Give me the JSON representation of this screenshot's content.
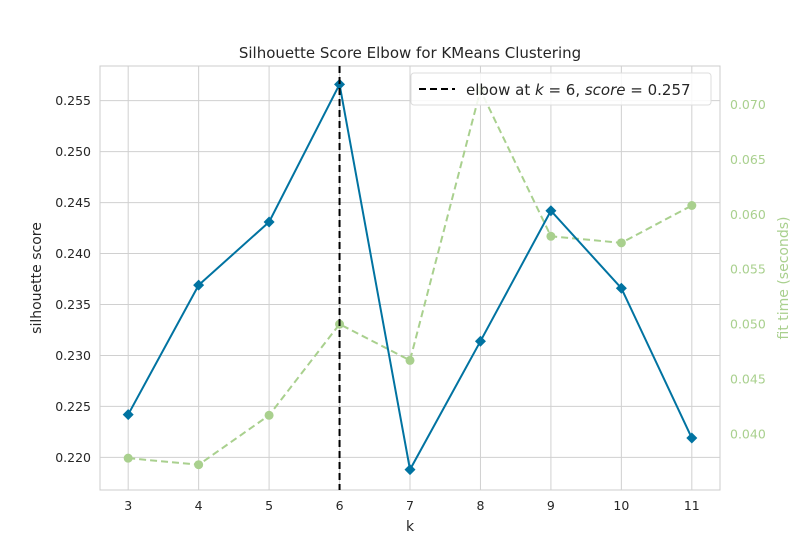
{
  "chart_data": {
    "type": "line",
    "title": "Silhouette Score Elbow for KMeans Clustering",
    "xlabel": "k",
    "ylabel": "silhouette score",
    "y2label": "fit time (seconds)",
    "x": [
      3,
      4,
      5,
      6,
      7,
      8,
      9,
      10,
      11
    ],
    "xlim": [
      2.6,
      11.4
    ],
    "ylim": [
      0.2168,
      0.2584
    ],
    "y2lim": [
      0.0349,
      0.0735
    ],
    "yticks": [
      "0.220",
      "0.225",
      "0.230",
      "0.235",
      "0.240",
      "0.245",
      "0.250",
      "0.255"
    ],
    "y2ticks": [
      "0.040",
      "0.045",
      "0.050",
      "0.055",
      "0.060",
      "0.065",
      "0.070"
    ],
    "grid": true,
    "legend_position": "top-right",
    "series": [
      {
        "axis": "left",
        "color": "#0173a1",
        "marker": "diamond",
        "style": "solid",
        "values": [
          0.2242,
          0.2369,
          0.2431,
          0.2566,
          0.2188,
          0.2314,
          0.2442,
          0.2366,
          0.2219
        ]
      },
      {
        "axis": "right",
        "color": "#a9d08e",
        "marker": "circle",
        "style": "dashed",
        "values": [
          0.0378,
          0.0372,
          0.0417,
          0.05,
          0.0467,
          0.0713,
          0.058,
          0.0574,
          0.0608
        ]
      }
    ],
    "elbow": {
      "k": 6,
      "score": 0.257,
      "legend_prefix": "elbow at ",
      "legend_k": "k",
      "legend_eq": " = 6, ",
      "legend_score": "score",
      "legend_value": " = 0.257"
    }
  }
}
